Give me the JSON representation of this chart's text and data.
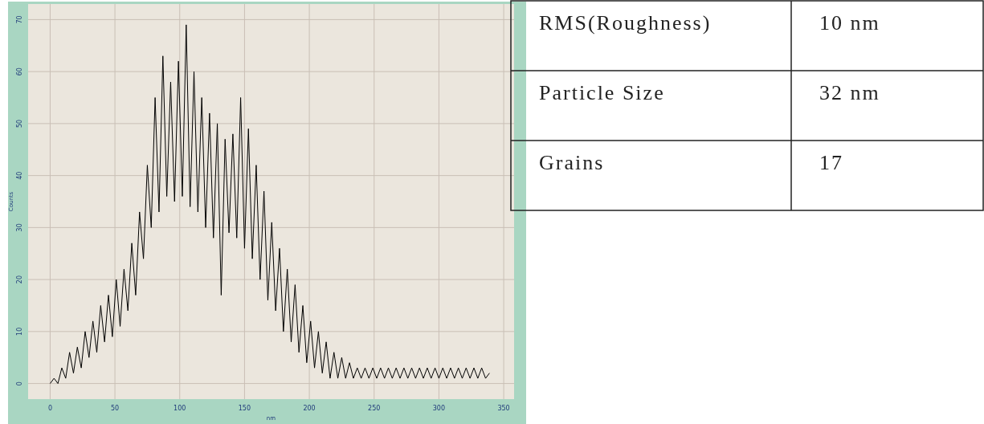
{
  "chart_data": [
    {
      "type": "line",
      "xlabel": "nm",
      "ylabel": "Counts",
      "x": [
        0,
        3,
        6,
        9,
        12,
        15,
        18,
        21,
        24,
        27,
        30,
        33,
        36,
        39,
        42,
        45,
        48,
        51,
        54,
        57,
        60,
        63,
        66,
        69,
        72,
        75,
        78,
        81,
        84,
        87,
        90,
        93,
        96,
        99,
        102,
        105,
        108,
        111,
        114,
        117,
        120,
        123,
        126,
        129,
        132,
        135,
        138,
        141,
        144,
        147,
        150,
        153,
        156,
        159,
        162,
        165,
        168,
        171,
        174,
        177,
        180,
        183,
        186,
        189,
        192,
        195,
        198,
        201,
        204,
        207,
        210,
        213,
        216,
        219,
        222,
        225,
        228,
        231,
        234,
        237,
        240,
        243,
        246,
        249,
        252,
        255,
        258,
        261,
        264,
        267,
        270,
        273,
        276,
        279,
        282,
        285,
        288,
        291,
        294,
        297,
        300,
        303,
        306,
        309,
        312,
        315,
        318,
        321,
        324,
        327,
        330,
        333,
        336,
        339
      ],
      "series": [
        {
          "color": "#000000",
          "values": [
            0,
            1,
            0,
            3,
            1,
            6,
            2,
            7,
            3,
            10,
            5,
            12,
            6,
            15,
            8,
            17,
            9,
            20,
            11,
            22,
            14,
            27,
            17,
            33,
            24,
            42,
            30,
            55,
            33,
            63,
            36,
            58,
            35,
            62,
            36,
            69,
            34,
            60,
            33,
            55,
            30,
            52,
            28,
            50,
            17,
            47,
            29,
            48,
            28,
            55,
            26,
            49,
            24,
            42,
            20,
            37,
            16,
            31,
            14,
            26,
            10,
            22,
            8,
            19,
            6,
            15,
            4,
            12,
            3,
            10,
            2,
            8,
            1,
            6,
            1,
            5,
            1,
            4,
            1,
            3,
            1,
            3,
            1,
            3,
            1,
            3,
            1,
            3,
            1,
            3,
            1,
            3,
            1,
            3,
            1,
            3,
            1,
            3,
            1,
            3,
            1,
            3,
            1,
            3,
            1,
            3,
            1,
            3,
            1,
            3,
            1,
            3,
            1,
            2
          ]
        }
      ],
      "xlim": [
        -17,
        358
      ],
      "ylim": [
        -3,
        73
      ],
      "xticks": [
        0,
        50,
        100,
        150,
        200,
        250,
        300,
        350
      ],
      "yticks": [
        0,
        10,
        20,
        30,
        40,
        50,
        60,
        70
      ],
      "grid": true
    },
    {
      "type": "other",
      "annotations": [
        "RMS(Roughness)",
        "10 nm",
        "Particle Size",
        "32 nm",
        "Grains",
        "17"
      ]
    }
  ]
}
